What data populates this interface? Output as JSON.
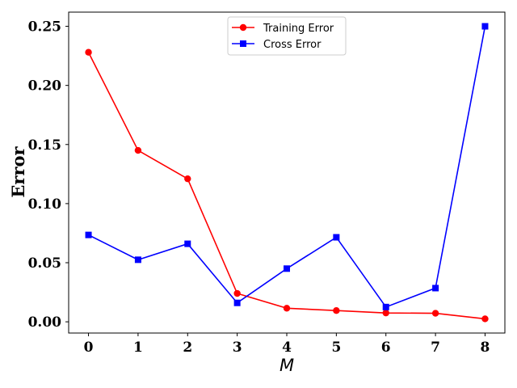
{
  "chart_data": {
    "type": "line",
    "title": "",
    "xlabel": "M",
    "ylabel": "Error",
    "x": [
      0,
      1,
      2,
      3,
      4,
      5,
      6,
      7,
      8
    ],
    "x_ticks": [
      "0",
      "1",
      "2",
      "3",
      "4",
      "5",
      "6",
      "7",
      "8"
    ],
    "y_ticks": [
      "0.00",
      "0.05",
      "0.10",
      "0.15",
      "0.20",
      "0.25"
    ],
    "xlim": [
      -0.4,
      8.4
    ],
    "ylim": [
      -0.0095,
      0.262
    ],
    "grid": false,
    "legend_position": "top-center",
    "series": [
      {
        "name": "Training Error",
        "color": "#ff0000",
        "marker": "circle",
        "values": [
          0.228,
          0.145,
          0.121,
          0.024,
          0.0115,
          0.0095,
          0.0075,
          0.0072,
          0.0025
        ]
      },
      {
        "name": "Cross Error",
        "color": "#0000ff",
        "marker": "square",
        "values": [
          0.0735,
          0.0525,
          0.066,
          0.016,
          0.045,
          0.0715,
          0.0125,
          0.0285,
          0.25
        ]
      }
    ]
  }
}
